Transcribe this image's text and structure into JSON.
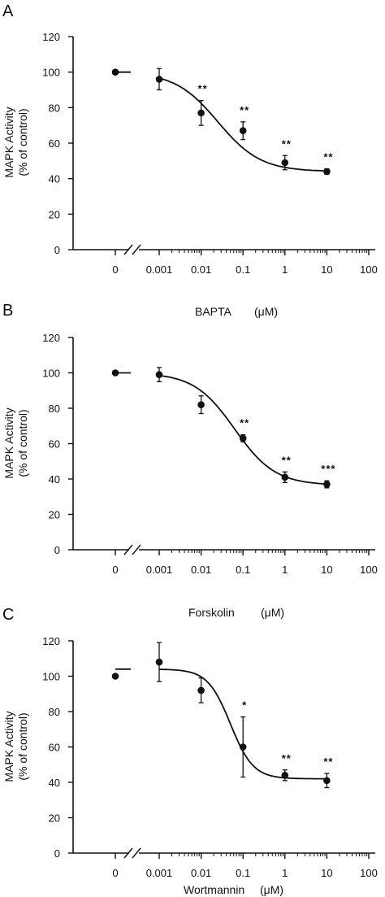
{
  "chart_data": [
    {
      "type": "scatter",
      "panel_label": "A",
      "ylabel": "MAPK Activity\n(% of control)",
      "xlabel": "BAPTA",
      "xunit": "(μM)",
      "ylim": [
        0,
        120
      ],
      "y_ticks": [
        "0",
        "20",
        "40",
        "60",
        "80",
        "100",
        "120"
      ],
      "x_ticks": [
        "0",
        "0.001",
        "0.01",
        "0.1",
        "1",
        "10",
        "100"
      ],
      "x_scale": "log with broken axis at 0",
      "points": [
        {
          "x": "0",
          "y": 100,
          "err": 0,
          "sig": ""
        },
        {
          "x": 0.001,
          "y": 96,
          "err": 6,
          "sig": ""
        },
        {
          "x": 0.01,
          "y": 77,
          "err": 7,
          "sig": "**"
        },
        {
          "x": 0.1,
          "y": 67,
          "err": 5,
          "sig": "**"
        },
        {
          "x": 1,
          "y": 49,
          "err": 4,
          "sig": "**"
        },
        {
          "x": 10,
          "y": 44,
          "err": 1.5,
          "sig": "**"
        }
      ],
      "fit": {
        "top": 100,
        "bottom": 44,
        "log_ic50": -1.6,
        "hill": 0.85
      }
    },
    {
      "type": "scatter",
      "panel_label": "B",
      "ylabel": "MAPK Activity\n(% of control)",
      "xlabel": "Forskolin",
      "xunit": "(μM)",
      "ylim": [
        0,
        120
      ],
      "y_ticks": [
        "0",
        "20",
        "40",
        "60",
        "80",
        "100",
        "120"
      ],
      "x_ticks": [
        "0",
        "0.001",
        "0.01",
        "0.1",
        "1",
        "10",
        "100"
      ],
      "x_scale": "log with broken axis at 0",
      "points": [
        {
          "x": "0",
          "y": 100,
          "err": 0,
          "sig": ""
        },
        {
          "x": 0.001,
          "y": 99,
          "err": 4,
          "sig": ""
        },
        {
          "x": 0.01,
          "y": 82,
          "err": 5,
          "sig": ""
        },
        {
          "x": 0.1,
          "y": 63,
          "err": 2,
          "sig": "**"
        },
        {
          "x": 1,
          "y": 41,
          "err": 3,
          "sig": "**"
        },
        {
          "x": 10,
          "y": 37,
          "err": 2,
          "sig": "***"
        }
      ],
      "fit": {
        "top": 100,
        "bottom": 36.5,
        "log_ic50": -1.2,
        "hill": 0.9
      }
    },
    {
      "type": "scatter",
      "panel_label": "C",
      "ylabel": "MAPK Activity\n(% of control)",
      "xlabel": "Wortmannin",
      "xunit": "(μM)",
      "ylim": [
        0,
        120
      ],
      "y_ticks": [
        "0",
        "20",
        "40",
        "60",
        "80",
        "100",
        "120"
      ],
      "x_ticks": [
        "0",
        "0.001",
        "0.01",
        "0.1",
        "1",
        "10",
        "100"
      ],
      "x_scale": "log with broken axis at 0",
      "points": [
        {
          "x": "0",
          "y": 100,
          "err": 0,
          "sig": ""
        },
        {
          "x": 0.001,
          "y": 108,
          "err": 11,
          "sig": ""
        },
        {
          "x": 0.01,
          "y": 92,
          "err": 7,
          "sig": ""
        },
        {
          "x": 0.1,
          "y": 60,
          "err": 17,
          "sig": "*"
        },
        {
          "x": 1,
          "y": 44,
          "err": 3,
          "sig": "**"
        },
        {
          "x": 10,
          "y": 41,
          "err": 4,
          "sig": "**"
        }
      ],
      "fit": {
        "top": 104,
        "bottom": 42,
        "log_ic50": -1.3,
        "hill": 1.6
      }
    }
  ]
}
